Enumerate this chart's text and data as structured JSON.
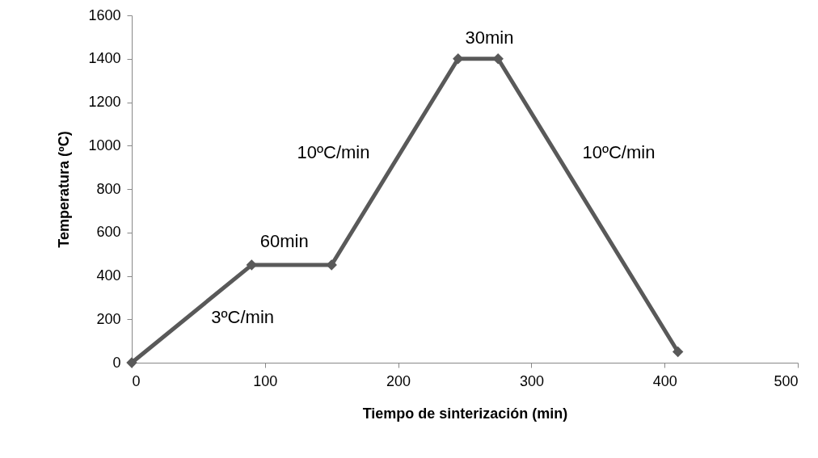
{
  "chart_data": {
    "type": "line",
    "xlabel": "Tiempo de sinterización  (min)",
    "ylabel": "Temperatura (ºC)",
    "x": [
      0,
      90,
      150,
      245,
      275,
      410
    ],
    "series": [
      {
        "color": "#595959",
        "values": [
          0,
          450,
          450,
          1400,
          1400,
          50
        ]
      }
    ],
    "xlim": [
      0,
      500
    ],
    "xticks": [
      0,
      100,
      200,
      300,
      400,
      500
    ],
    "ylim": [
      0,
      1600
    ],
    "yticks": [
      0,
      200,
      400,
      600,
      800,
      1000,
      1200,
      1400,
      1600
    ],
    "grid": false,
    "marker": "diamond",
    "line_style": "solid",
    "annotations": [
      "3ºC/min",
      "60min",
      "10ºC/min",
      "30min",
      "10ºC/min"
    ]
  }
}
